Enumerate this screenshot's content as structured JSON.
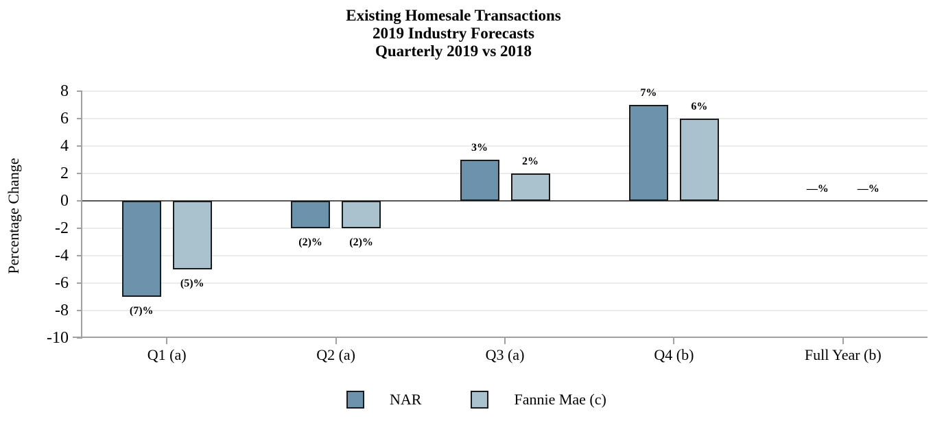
{
  "chart_data": {
    "type": "bar",
    "title_lines": [
      "Existing Homesale Transactions",
      "2019 Industry Forecasts",
      "Quarterly 2019 vs 2018"
    ],
    "ylabel": "Percentage Change",
    "xlabel": "",
    "categories": [
      "Q1 (a)",
      "Q2 (a)",
      "Q3 (a)",
      "Q4 (b)",
      "Full Year (b)"
    ],
    "series": [
      {
        "name": "NAR",
        "color": "#6d92ab",
        "values": [
          -7,
          -2,
          3,
          7,
          0
        ],
        "labels": [
          "(7)%",
          "(2)%",
          "3%",
          "7%",
          "—%"
        ]
      },
      {
        "name": "Fannie Mae (c)",
        "color": "#a9c2ce",
        "values": [
          -5,
          -2,
          2,
          6,
          0
        ],
        "labels": [
          "(5)%",
          "(2)%",
          "2%",
          "6%",
          "—%"
        ]
      }
    ],
    "y_axis": {
      "min": -10,
      "max": 8,
      "step": 2,
      "ticks": [
        8,
        6,
        4,
        2,
        0,
        -2,
        -4,
        -6,
        -8,
        -10
      ]
    },
    "grid": true,
    "legend_position": "bottom",
    "colors": {
      "bar_border": "#1a1a1a",
      "gridline": "#ececec",
      "zero_line": "#555555",
      "axis_line": "#a0a0a0",
      "text": "#000000"
    }
  }
}
